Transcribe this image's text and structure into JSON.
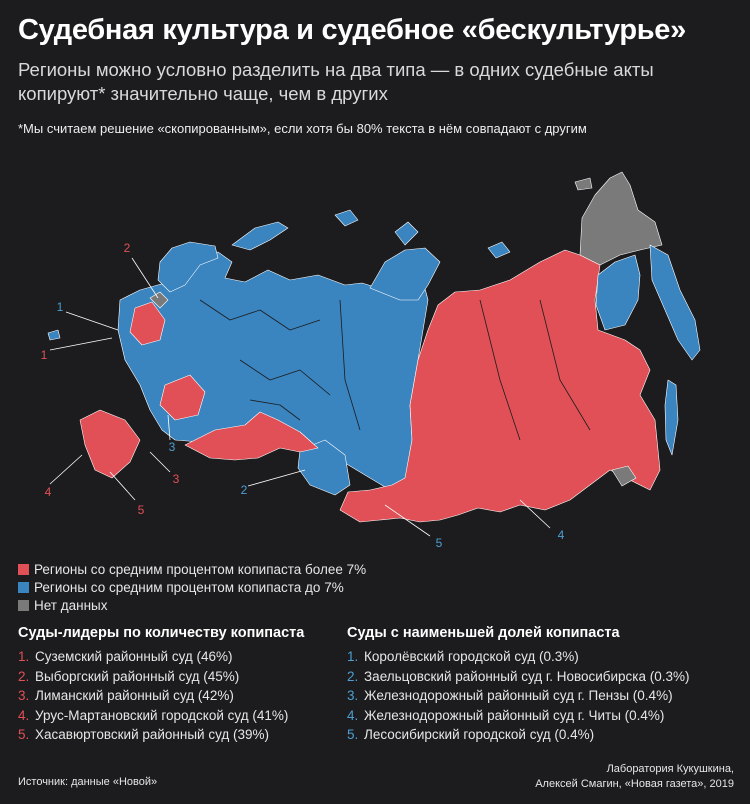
{
  "title": "Судебная культура и судебное «бескультурье»",
  "subtitle": "Регионы можно условно разделить на два типа — в одних судебные акты копируют* значительно чаще, чем в других",
  "footnote": "*Мы считаем решение «скопированным», если хотя бы 80% текста в нём совпадают с другим",
  "colors": {
    "background": "#1c1c1e",
    "high_copypaste": "#e05056",
    "low_copypaste": "#3a84bf",
    "no_data": "#7a7a7a"
  },
  "legend": [
    {
      "label": "Регионы со средним процентом копипаста более 7%",
      "color": "#e05056"
    },
    {
      "label": "Регионы со средним процентом копипаста до 7%",
      "color": "#3a84bf"
    },
    {
      "label": "Нет данных",
      "color": "#7a7a7a"
    }
  ],
  "map_callouts": {
    "red": [
      "1",
      "2",
      "3",
      "4",
      "5"
    ],
    "blue": [
      "1",
      "2",
      "3",
      "4",
      "5"
    ]
  },
  "leaders": {
    "title": "Суды-лидеры по количеству копипаста",
    "items": [
      {
        "num": "1.",
        "text": "Суземский районный суд (46%)"
      },
      {
        "num": "2.",
        "text": "Выборгский районный суд (45%)"
      },
      {
        "num": "3.",
        "text": "Лиманский районный суд (42%)"
      },
      {
        "num": "4.",
        "text": "Урус-Мартановский городской суд (41%)"
      },
      {
        "num": "5.",
        "text": "Хасавюртовский районный суд (39%)"
      }
    ]
  },
  "lowest": {
    "title": "Суды с наименьшей долей копипаста",
    "items": [
      {
        "num": "1.",
        "text": "Королёвский городской суд (0.3%)"
      },
      {
        "num": "2.",
        "text": "Заельцовский районный суд г. Новосибирска (0.3%)"
      },
      {
        "num": "3.",
        "text": "Железнодорожный районный суд г. Пензы (0.4%)"
      },
      {
        "num": "4.",
        "text": "Железнодорожный районный суд г. Читы (0.4%)"
      },
      {
        "num": "5.",
        "text": "Лесосибирский городской суд (0.4%)"
      }
    ]
  },
  "source": "Источник: данные «Новой»",
  "credits": [
    "Лаборатория Кукушкина,",
    "Алексей Смагин, «Новая газета», 2019"
  ]
}
